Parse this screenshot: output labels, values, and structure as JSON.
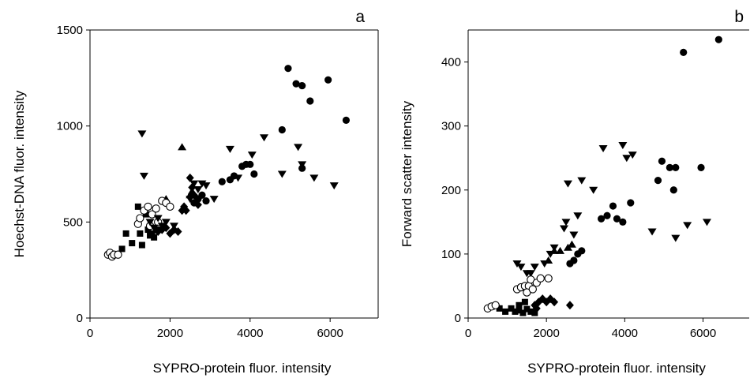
{
  "chart_data": [
    {
      "type": "scatter",
      "panel_label": "a",
      "xlabel": "SYPRO-protein fluor. intensity",
      "ylabel": "Hoechst-DNA fluor. intensity",
      "xlim": [
        0,
        7200
      ],
      "ylim": [
        0,
        1500
      ],
      "xticks": [
        "0",
        "2000",
        "4000",
        "6000"
      ],
      "yticks": [
        "0",
        "500",
        "1000",
        "1500"
      ],
      "series": [
        {
          "marker": "circle-filled",
          "points": [
            [
              2600,
              600
            ],
            [
              2700,
              620
            ],
            [
              2800,
              640
            ],
            [
              2900,
              610
            ],
            [
              3300,
              710
            ],
            [
              3500,
              720
            ],
            [
              3600,
              740
            ],
            [
              3800,
              790
            ],
            [
              3900,
              800
            ],
            [
              4000,
              800
            ],
            [
              4100,
              750
            ],
            [
              4800,
              980
            ],
            [
              4950,
              1300
            ],
            [
              5150,
              1220
            ],
            [
              5300,
              1210
            ],
            [
              5500,
              1130
            ],
            [
              5300,
              780
            ],
            [
              5950,
              1240
            ],
            [
              6400,
              1030
            ]
          ]
        },
        {
          "marker": "triangle-down-filled",
          "points": [
            [
              1300,
              960
            ],
            [
              1350,
              740
            ],
            [
              2500,
              620
            ],
            [
              2600,
              700
            ],
            [
              2700,
              670
            ],
            [
              2800,
              700
            ],
            [
              2900,
              690
            ],
            [
              3100,
              620
            ],
            [
              3500,
              880
            ],
            [
              3700,
              730
            ],
            [
              4050,
              850
            ],
            [
              4350,
              940
            ],
            [
              4800,
              750
            ],
            [
              5200,
              890
            ],
            [
              5300,
              800
            ],
            [
              5600,
              730
            ],
            [
              6100,
              690
            ]
          ]
        },
        {
          "marker": "triangle-up-filled",
          "points": [
            [
              2300,
              890
            ],
            [
              2500,
              640
            ],
            [
              2550,
              660
            ],
            [
              1900,
              620
            ]
          ]
        },
        {
          "marker": "diamond-filled",
          "points": [
            [
              1700,
              450
            ],
            [
              1800,
              460
            ],
            [
              1900,
              470
            ],
            [
              2000,
              440
            ],
            [
              2100,
              460
            ],
            [
              2200,
              450
            ],
            [
              2300,
              560
            ],
            [
              2350,
              580
            ],
            [
              2400,
              560
            ],
            [
              2500,
              730
            ],
            [
              2550,
              680
            ],
            [
              2600,
              640
            ],
            [
              2700,
              590
            ]
          ]
        },
        {
          "marker": "square-filled",
          "points": [
            [
              600,
              330
            ],
            [
              800,
              360
            ],
            [
              900,
              440
            ],
            [
              1050,
              390
            ],
            [
              1200,
              580
            ],
            [
              1250,
              440
            ],
            [
              1300,
              380
            ],
            [
              1400,
              540
            ],
            [
              1450,
              460
            ],
            [
              1500,
              430
            ],
            [
              1550,
              440
            ],
            [
              1600,
              420
            ],
            [
              1700,
              460
            ]
          ]
        },
        {
          "marker": "circle-open",
          "points": [
            [
              450,
              330
            ],
            [
              500,
              340
            ],
            [
              550,
              320
            ],
            [
              600,
              330
            ],
            [
              700,
              330
            ],
            [
              1200,
              490
            ],
            [
              1250,
              520
            ],
            [
              1350,
              560
            ],
            [
              1450,
              580
            ],
            [
              1550,
              540
            ],
            [
              1650,
              570
            ],
            [
              1800,
              610
            ],
            [
              1900,
              600
            ],
            [
              2000,
              580
            ],
            [
              1700,
              500
            ],
            [
              1500,
              480
            ]
          ]
        },
        {
          "marker": "triangle-down-filled",
          "points": [
            [
              1500,
              500
            ],
            [
              1700,
              520
            ],
            [
              1800,
              480
            ],
            [
              1900,
              500
            ],
            [
              2100,
              480
            ],
            [
              1600,
              470
            ]
          ]
        }
      ]
    },
    {
      "type": "scatter",
      "panel_label": "b",
      "xlabel": "SYPRO-protein fluor. intensity",
      "ylabel": "Forward scatter intensity",
      "xlim": [
        0,
        7200
      ],
      "ylim": [
        0,
        450
      ],
      "xticks": [
        "0",
        "2000",
        "4000",
        "6000"
      ],
      "yticks": [
        "0",
        "100",
        "200",
        "300",
        "400"
      ],
      "series": [
        {
          "marker": "circle-filled",
          "points": [
            [
              2600,
              85
            ],
            [
              2700,
              90
            ],
            [
              2800,
              100
            ],
            [
              2900,
              105
            ],
            [
              3400,
              155
            ],
            [
              3550,
              160
            ],
            [
              3700,
              175
            ],
            [
              3800,
              155
            ],
            [
              3950,
              150
            ],
            [
              4150,
              180
            ],
            [
              4850,
              215
            ],
            [
              4950,
              245
            ],
            [
              5150,
              235
            ],
            [
              5250,
              200
            ],
            [
              5300,
              235
            ],
            [
              5950,
              235
            ],
            [
              5500,
              415
            ],
            [
              6400,
              435
            ]
          ]
        },
        {
          "marker": "triangle-down-filled",
          "points": [
            [
              1500,
              70
            ],
            [
              1600,
              70
            ],
            [
              1700,
              80
            ],
            [
              1950,
              85
            ],
            [
              2100,
              100
            ],
            [
              2200,
              110
            ],
            [
              2450,
              140
            ],
            [
              2500,
              150
            ],
            [
              2550,
              210
            ],
            [
              2700,
              130
            ],
            [
              2800,
              160
            ],
            [
              2900,
              215
            ],
            [
              3200,
              200
            ],
            [
              3450,
              265
            ],
            [
              3950,
              270
            ],
            [
              4050,
              250
            ],
            [
              4200,
              255
            ],
            [
              4700,
              135
            ],
            [
              5300,
              125
            ],
            [
              5600,
              145
            ],
            [
              6100,
              150
            ],
            [
              1250,
              85
            ],
            [
              1350,
              80
            ]
          ]
        },
        {
          "marker": "triangle-up-filled",
          "points": [
            [
              2050,
              90
            ],
            [
              2200,
              105
            ],
            [
              2350,
              105
            ],
            [
              2550,
              110
            ],
            [
              2650,
              115
            ]
          ]
        },
        {
          "marker": "diamond-filled",
          "points": [
            [
              1700,
              20
            ],
            [
              1800,
              25
            ],
            [
              1900,
              30
            ],
            [
              2000,
              25
            ],
            [
              2100,
              30
            ],
            [
              2200,
              25
            ],
            [
              1750,
              15
            ],
            [
              2600,
              20
            ]
          ]
        },
        {
          "marker": "square-filled",
          "points": [
            [
              600,
              18
            ],
            [
              800,
              15
            ],
            [
              950,
              10
            ],
            [
              1100,
              15
            ],
            [
              1200,
              10
            ],
            [
              1300,
              12
            ],
            [
              1400,
              8
            ],
            [
              1500,
              14
            ],
            [
              1600,
              10
            ],
            [
              1700,
              8
            ],
            [
              1300,
              20
            ],
            [
              1450,
              25
            ]
          ]
        },
        {
          "marker": "circle-open",
          "points": [
            [
              500,
              15
            ],
            [
              600,
              18
            ],
            [
              700,
              20
            ],
            [
              1250,
              45
            ],
            [
              1350,
              48
            ],
            [
              1450,
              50
            ],
            [
              1550,
              50
            ],
            [
              1600,
              60
            ],
            [
              1750,
              55
            ],
            [
              1850,
              62
            ],
            [
              2050,
              62
            ],
            [
              1500,
              40
            ],
            [
              1650,
              45
            ]
          ]
        }
      ]
    }
  ]
}
